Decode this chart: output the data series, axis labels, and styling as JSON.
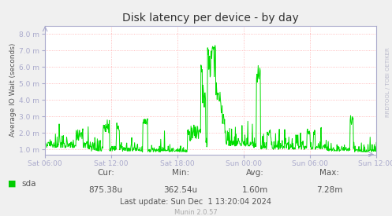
{
  "title": "Disk latency per device - by day",
  "ylabel": "Average IO Wait (seconds)",
  "outer_bg": "#f0f0f0",
  "plot_bg_color": "#ffffff",
  "grid_color": "#ff9999",
  "grid_style": "dotted",
  "line_color": "#00dd00",
  "ytick_labels": [
    "1.0 m",
    "2.0 m",
    "3.0 m",
    "4.0 m",
    "5.0 m",
    "6.0 m",
    "7.0 m",
    "8.0 m"
  ],
  "ytick_vals": [
    1.0,
    2.0,
    3.0,
    4.0,
    5.0,
    6.0,
    7.0,
    8.0
  ],
  "ylim_min": 0.7,
  "ylim_max": 8.5,
  "xtick_labels": [
    "Sat 06:00",
    "Sat 12:00",
    "Sat 18:00",
    "Sun 00:00",
    "Sun 06:00",
    "Sun 12:00"
  ],
  "legend_label": "sda",
  "legend_color": "#00cc00",
  "cur_label": "Cur:",
  "cur_value": "875.38u",
  "min_label": "Min:",
  "min_value": "362.54u",
  "avg_label": "Avg:",
  "avg_value": "1.60m",
  "max_label": "Max:",
  "max_value": "7.28m",
  "last_update": "Last update: Sun Dec  1 13:20:04 2024",
  "munin_version": "Munin 2.0.57",
  "rrdtool_label": "RRDTOOL / TOBI OETIKER",
  "tick_color": "#aaaacc",
  "spine_color": "#aaaacc",
  "label_color": "#555555",
  "title_color": "#333333"
}
